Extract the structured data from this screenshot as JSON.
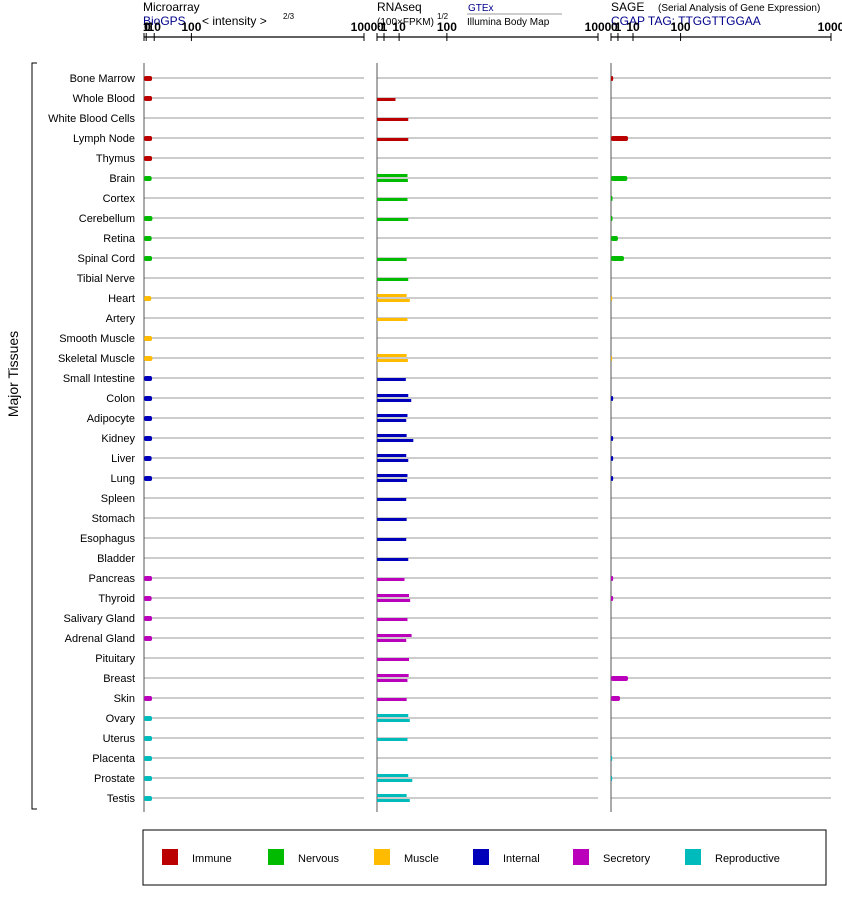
{
  "panels": {
    "microarray": {
      "title": "Microarray",
      "source": "BioGPS",
      "measure_label": "< intensity >",
      "exponent": "2/3"
    },
    "rnaseq": {
      "title": "RNAseq",
      "measure_label": "(100×FPKM)",
      "exponent": "1/2",
      "source1": "GTEx",
      "source2": "Illumina Body Map"
    },
    "sage": {
      "title": "SAGE",
      "subtitle": "(Serial Analysis of Gene Expression)",
      "tag_label": "CGAP TAG: TTGGTTGGAA"
    }
  },
  "y_group_label": "Major Tissues",
  "colors": {
    "Immune": "#bb0000",
    "Nervous": "#00bb00",
    "Muscle": "#ffbb00",
    "Internal": "#0000bb",
    "Secretory": "#bb00bb",
    "Reproductive": "#00bbbb"
  },
  "legend": [
    {
      "label": "Immune",
      "color": "#bb0000"
    },
    {
      "label": "Nervous",
      "color": "#00bb00"
    },
    {
      "label": "Muscle",
      "color": "#ffbb00"
    },
    {
      "label": "Internal",
      "color": "#0000bb"
    },
    {
      "label": "Secretory",
      "color": "#bb00bb"
    },
    {
      "label": "Reproductive",
      "color": "#00bbbb"
    }
  ],
  "chart_data": {
    "type": "bar",
    "orientation": "horizontal",
    "x_scale": "log",
    "x_ticks": [
      "0",
      "1",
      "10",
      "100",
      "1000"
    ],
    "xlim": [
      0,
      1000
    ],
    "tissues": [
      {
        "name": "Bone Marrow",
        "group": "Immune",
        "microarray": 7,
        "rnaseq": [],
        "sage": 0.1
      },
      {
        "name": "Whole Blood",
        "group": "Immune",
        "microarray": 7,
        "rnaseq": [
          7
        ],
        "sage": null
      },
      {
        "name": "White Blood Cells",
        "group": "Immune",
        "microarray": null,
        "rnaseq": [
          20
        ],
        "sage": null
      },
      {
        "name": "Lymph Node",
        "group": "Immune",
        "microarray": 7,
        "rnaseq": [
          20
        ],
        "sage": 6
      },
      {
        "name": "Thymus",
        "group": "Immune",
        "microarray": 7,
        "rnaseq": [],
        "sage": null
      },
      {
        "name": "Brain",
        "group": "Nervous",
        "microarray": 6.5,
        "rnaseq": [
          19,
          19.5
        ],
        "sage": 5.5
      },
      {
        "name": "Cortex",
        "group": "Nervous",
        "microarray": null,
        "rnaseq": [
          19
        ],
        "sage": 0.05
      },
      {
        "name": "Cerebellum",
        "group": "Nervous",
        "microarray": 7.5,
        "rnaseq": [
          20
        ],
        "sage": 0.05
      },
      {
        "name": "Retina",
        "group": "Nervous",
        "microarray": 6.5,
        "rnaseq": [],
        "sage": 1
      },
      {
        "name": "Spinal Cord",
        "group": "Nervous",
        "microarray": 7,
        "rnaseq": [
          18
        ],
        "sage": 3.5
      },
      {
        "name": "Tibial Nerve",
        "group": "Nervous",
        "microarray": null,
        "rnaseq": [
          20
        ],
        "sage": null
      },
      {
        "name": "Heart",
        "group": "Muscle",
        "microarray": 6,
        "rnaseq": [
          18,
          22
        ],
        "sage": 0.03
      },
      {
        "name": "Artery",
        "group": "Muscle",
        "microarray": null,
        "rnaseq": [
          19
        ],
        "sage": null
      },
      {
        "name": "Smooth Muscle",
        "group": "Muscle",
        "microarray": 7,
        "rnaseq": [],
        "sage": null
      },
      {
        "name": "Skeletal Muscle",
        "group": "Muscle",
        "microarray": 7.5,
        "rnaseq": [
          18,
          19.5
        ],
        "sage": 0.03
      },
      {
        "name": "Small Intestine",
        "group": "Internal",
        "microarray": 7,
        "rnaseq": [
          17
        ],
        "sage": null
      },
      {
        "name": "Colon",
        "group": "Internal",
        "microarray": 7,
        "rnaseq": [
          20,
          24
        ],
        "sage": 0.1
      },
      {
        "name": "Adipocyte",
        "group": "Internal",
        "microarray": 7,
        "rnaseq": [
          19,
          17.5
        ],
        "sage": null
      },
      {
        "name": "Kidney",
        "group": "Internal",
        "microarray": 7,
        "rnaseq": [
          18,
          27
        ],
        "sage": 0.1
      },
      {
        "name": "Liver",
        "group": "Internal",
        "microarray": 6.5,
        "rnaseq": [
          17.5,
          20
        ],
        "sage": 0.1
      },
      {
        "name": "Lung",
        "group": "Internal",
        "microarray": 7,
        "rnaseq": [
          19,
          18.5
        ],
        "sage": 0.1
      },
      {
        "name": "Spleen",
        "group": "Internal",
        "microarray": null,
        "rnaseq": [
          17.5
        ],
        "sage": null
      },
      {
        "name": "Stomach",
        "group": "Internal",
        "microarray": null,
        "rnaseq": [
          18
        ],
        "sage": null
      },
      {
        "name": "Esophagus",
        "group": "Internal",
        "microarray": null,
        "rnaseq": [
          17.5
        ],
        "sage": null
      },
      {
        "name": "Bladder",
        "group": "Internal",
        "microarray": null,
        "rnaseq": [
          20
        ],
        "sage": null
      },
      {
        "name": "Pancreas",
        "group": "Secretory",
        "microarray": 7,
        "rnaseq": [
          15.5
        ],
        "sage": 0.1
      },
      {
        "name": "Thyroid",
        "group": "Secretory",
        "microarray": 6.5,
        "rnaseq": [
          21,
          22.5
        ],
        "sage": 0.1
      },
      {
        "name": "Salivary Gland",
        "group": "Secretory",
        "microarray": 7,
        "rnaseq": [
          19
        ],
        "sage": null
      },
      {
        "name": "Adrenal Gland",
        "group": "Secretory",
        "microarray": 7,
        "rnaseq": [
          24.5,
          17.5
        ],
        "sage": null
      },
      {
        "name": "Pituitary",
        "group": "Secretory",
        "microarray": null,
        "rnaseq": [
          21
        ],
        "sage": null
      },
      {
        "name": "Breast",
        "group": "Secretory",
        "microarray": null,
        "rnaseq": [
          20.5,
          19
        ],
        "sage": 6
      },
      {
        "name": "Skin",
        "group": "Secretory",
        "microarray": 7,
        "rnaseq": [
          18
        ],
        "sage": 1.7
      },
      {
        "name": "Ovary",
        "group": "Reproductive",
        "microarray": 7,
        "rnaseq": [
          20,
          22
        ],
        "sage": null
      },
      {
        "name": "Uterus",
        "group": "Reproductive",
        "microarray": 7,
        "rnaseq": [
          19
        ],
        "sage": null
      },
      {
        "name": "Placenta",
        "group": "Reproductive",
        "microarray": 7,
        "rnaseq": [],
        "sage": 0.03
      },
      {
        "name": "Prostate",
        "group": "Reproductive",
        "microarray": 7,
        "rnaseq": [
          20,
          25.5
        ],
        "sage": 0.03
      },
      {
        "name": "Testis",
        "group": "Reproductive",
        "microarray": 7,
        "rnaseq": [
          18,
          22
        ],
        "sage": null
      }
    ]
  }
}
